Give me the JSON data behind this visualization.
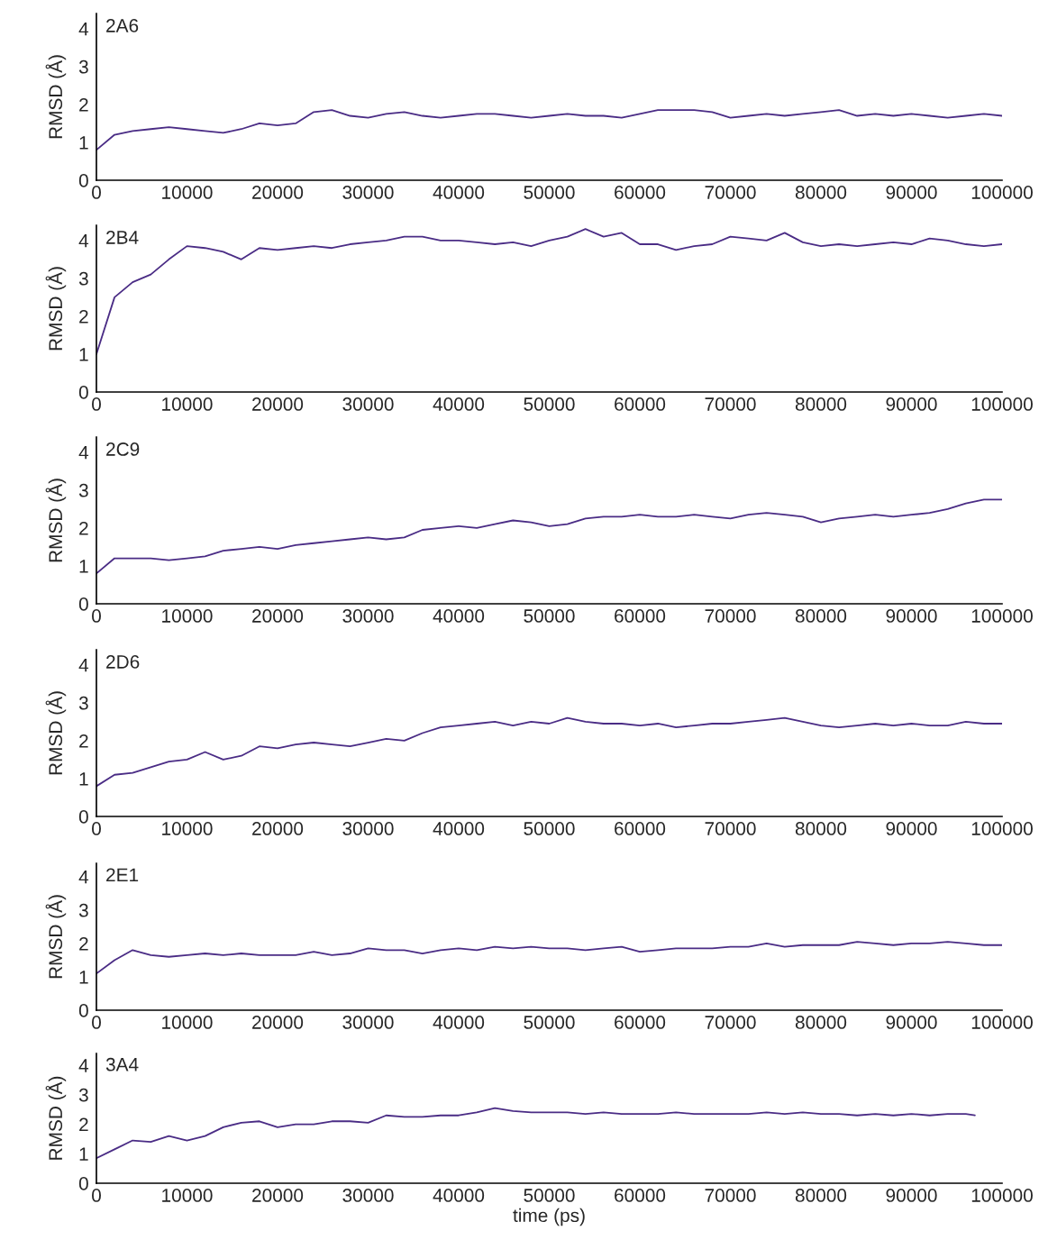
{
  "chart_data": [
    {
      "type": "line",
      "ylabel": "RMSD (Å)",
      "annotations": [
        "2A6"
      ],
      "xlim": [
        0,
        100000
      ],
      "ylim": [
        0,
        4.4
      ],
      "xticks": [
        0,
        10000,
        20000,
        30000,
        40000,
        50000,
        60000,
        70000,
        80000,
        90000,
        100000
      ],
      "yticks": [
        0,
        1,
        2,
        3,
        4
      ],
      "x": [
        0,
        2000,
        4000,
        6000,
        8000,
        10000,
        12000,
        14000,
        16000,
        18000,
        20000,
        22000,
        24000,
        26000,
        28000,
        30000,
        32000,
        34000,
        36000,
        38000,
        40000,
        42000,
        44000,
        46000,
        48000,
        50000,
        52000,
        54000,
        56000,
        58000,
        60000,
        62000,
        64000,
        66000,
        68000,
        70000,
        72000,
        74000,
        76000,
        78000,
        80000,
        82000,
        84000,
        86000,
        88000,
        90000,
        92000,
        94000,
        96000,
        98000,
        100000
      ],
      "series": [
        {
          "color": "#4a2c85",
          "values": [
            0.8,
            1.2,
            1.3,
            1.35,
            1.4,
            1.35,
            1.3,
            1.25,
            1.35,
            1.5,
            1.45,
            1.5,
            1.8,
            1.85,
            1.7,
            1.65,
            1.75,
            1.8,
            1.7,
            1.65,
            1.7,
            1.75,
            1.75,
            1.7,
            1.65,
            1.7,
            1.75,
            1.7,
            1.7,
            1.65,
            1.75,
            1.85,
            1.85,
            1.85,
            1.8,
            1.65,
            1.7,
            1.75,
            1.7,
            1.75,
            1.8,
            1.85,
            1.7,
            1.75,
            1.7,
            1.75,
            1.7,
            1.65,
            1.7,
            1.75,
            1.7
          ]
        }
      ]
    },
    {
      "type": "line",
      "ylabel": "RMSD (Å)",
      "annotations": [
        "2B4"
      ],
      "xlim": [
        0,
        100000
      ],
      "ylim": [
        0,
        4.4
      ],
      "xticks": [
        0,
        10000,
        20000,
        30000,
        40000,
        50000,
        60000,
        70000,
        80000,
        90000,
        100000
      ],
      "yticks": [
        0,
        1,
        2,
        3,
        4
      ],
      "x": [
        0,
        2000,
        4000,
        6000,
        8000,
        10000,
        12000,
        14000,
        16000,
        18000,
        20000,
        22000,
        24000,
        26000,
        28000,
        30000,
        32000,
        34000,
        36000,
        38000,
        40000,
        42000,
        44000,
        46000,
        48000,
        50000,
        52000,
        54000,
        56000,
        58000,
        60000,
        62000,
        64000,
        66000,
        68000,
        70000,
        72000,
        74000,
        76000,
        78000,
        80000,
        82000,
        84000,
        86000,
        88000,
        90000,
        92000,
        94000,
        96000,
        98000,
        100000
      ],
      "series": [
        {
          "color": "#4a2c85",
          "values": [
            1.0,
            2.5,
            2.9,
            3.1,
            3.5,
            3.85,
            3.8,
            3.7,
            3.5,
            3.8,
            3.75,
            3.8,
            3.85,
            3.8,
            3.9,
            3.95,
            4.0,
            4.1,
            4.1,
            4.0,
            4.0,
            3.95,
            3.9,
            3.95,
            3.85,
            4.0,
            4.1,
            4.3,
            4.1,
            4.2,
            3.9,
            3.9,
            3.75,
            3.85,
            3.9,
            4.1,
            4.05,
            4.0,
            4.2,
            3.95,
            3.85,
            3.9,
            3.85,
            3.9,
            3.95,
            3.9,
            4.05,
            4.0,
            3.9,
            3.85,
            3.9
          ]
        }
      ]
    },
    {
      "type": "line",
      "ylabel": "RMSD (Å)",
      "annotations": [
        "2C9"
      ],
      "xlim": [
        0,
        100000
      ],
      "ylim": [
        0,
        4.4
      ],
      "xticks": [
        0,
        10000,
        20000,
        30000,
        40000,
        50000,
        60000,
        70000,
        80000,
        90000,
        100000
      ],
      "yticks": [
        0,
        1,
        2,
        3,
        4
      ],
      "x": [
        0,
        2000,
        4000,
        6000,
        8000,
        10000,
        12000,
        14000,
        16000,
        18000,
        20000,
        22000,
        24000,
        26000,
        28000,
        30000,
        32000,
        34000,
        36000,
        38000,
        40000,
        42000,
        44000,
        46000,
        48000,
        50000,
        52000,
        54000,
        56000,
        58000,
        60000,
        62000,
        64000,
        66000,
        68000,
        70000,
        72000,
        74000,
        76000,
        78000,
        80000,
        82000,
        84000,
        86000,
        88000,
        90000,
        92000,
        94000,
        96000,
        98000,
        100000
      ],
      "series": [
        {
          "color": "#4a2c85",
          "values": [
            0.8,
            1.2,
            1.2,
            1.2,
            1.15,
            1.2,
            1.25,
            1.4,
            1.45,
            1.5,
            1.45,
            1.55,
            1.6,
            1.65,
            1.7,
            1.75,
            1.7,
            1.75,
            1.95,
            2.0,
            2.05,
            2.0,
            2.1,
            2.2,
            2.15,
            2.05,
            2.1,
            2.25,
            2.3,
            2.3,
            2.35,
            2.3,
            2.3,
            2.35,
            2.3,
            2.25,
            2.35,
            2.4,
            2.35,
            2.3,
            2.15,
            2.25,
            2.3,
            2.35,
            2.3,
            2.35,
            2.4,
            2.5,
            2.65,
            2.75,
            2.75
          ]
        }
      ]
    },
    {
      "type": "line",
      "ylabel": "RMSD (Å)",
      "annotations": [
        "2D6"
      ],
      "xlim": [
        0,
        100000
      ],
      "ylim": [
        0,
        4.4
      ],
      "xticks": [
        0,
        10000,
        20000,
        30000,
        40000,
        50000,
        60000,
        70000,
        80000,
        90000,
        100000
      ],
      "yticks": [
        0,
        1,
        2,
        3,
        4
      ],
      "x": [
        0,
        2000,
        4000,
        6000,
        8000,
        10000,
        12000,
        14000,
        16000,
        18000,
        20000,
        22000,
        24000,
        26000,
        28000,
        30000,
        32000,
        34000,
        36000,
        38000,
        40000,
        42000,
        44000,
        46000,
        48000,
        50000,
        52000,
        54000,
        56000,
        58000,
        60000,
        62000,
        64000,
        66000,
        68000,
        70000,
        72000,
        74000,
        76000,
        78000,
        80000,
        82000,
        84000,
        86000,
        88000,
        90000,
        92000,
        94000,
        96000,
        98000,
        100000
      ],
      "series": [
        {
          "color": "#4a2c85",
          "values": [
            0.8,
            1.1,
            1.15,
            1.3,
            1.45,
            1.5,
            1.7,
            1.5,
            1.6,
            1.85,
            1.8,
            1.9,
            1.95,
            1.9,
            1.85,
            1.95,
            2.05,
            2.0,
            2.2,
            2.35,
            2.4,
            2.45,
            2.5,
            2.4,
            2.5,
            2.45,
            2.6,
            2.5,
            2.45,
            2.45,
            2.4,
            2.45,
            2.35,
            2.4,
            2.45,
            2.45,
            2.5,
            2.55,
            2.6,
            2.5,
            2.4,
            2.35,
            2.4,
            2.45,
            2.4,
            2.45,
            2.4,
            2.4,
            2.5,
            2.45,
            2.45
          ]
        }
      ]
    },
    {
      "type": "line",
      "ylabel": "RMSD (Å)",
      "annotations": [
        "2E1"
      ],
      "xlim": [
        0,
        100000
      ],
      "ylim": [
        0,
        4.4
      ],
      "xticks": [
        0,
        10000,
        20000,
        30000,
        40000,
        50000,
        60000,
        70000,
        80000,
        90000,
        100000
      ],
      "yticks": [
        0,
        1,
        2,
        3,
        4
      ],
      "x": [
        0,
        2000,
        4000,
        6000,
        8000,
        10000,
        12000,
        14000,
        16000,
        18000,
        20000,
        22000,
        24000,
        26000,
        28000,
        30000,
        32000,
        34000,
        36000,
        38000,
        40000,
        42000,
        44000,
        46000,
        48000,
        50000,
        52000,
        54000,
        56000,
        58000,
        60000,
        62000,
        64000,
        66000,
        68000,
        70000,
        72000,
        74000,
        76000,
        78000,
        80000,
        82000,
        84000,
        86000,
        88000,
        90000,
        92000,
        94000,
        96000,
        98000,
        100000
      ],
      "series": [
        {
          "color": "#4a2c85",
          "values": [
            1.1,
            1.5,
            1.8,
            1.65,
            1.6,
            1.65,
            1.7,
            1.65,
            1.7,
            1.65,
            1.65,
            1.65,
            1.75,
            1.65,
            1.7,
            1.85,
            1.8,
            1.8,
            1.7,
            1.8,
            1.85,
            1.8,
            1.9,
            1.85,
            1.9,
            1.85,
            1.85,
            1.8,
            1.85,
            1.9,
            1.75,
            1.8,
            1.85,
            1.85,
            1.85,
            1.9,
            1.9,
            2.0,
            1.9,
            1.95,
            1.95,
            1.95,
            2.05,
            2.0,
            1.95,
            2.0,
            2.0,
            2.05,
            2.0,
            1.95,
            1.95
          ]
        }
      ]
    },
    {
      "type": "line",
      "ylabel": "RMSD (Å)",
      "xlabel": "time (ps)",
      "annotations": [
        "3A4"
      ],
      "xlim": [
        0,
        100000
      ],
      "ylim": [
        0,
        4.4
      ],
      "xticks": [
        0,
        10000,
        20000,
        30000,
        40000,
        50000,
        60000,
        70000,
        80000,
        90000,
        100000
      ],
      "yticks": [
        0,
        1,
        2,
        3,
        4
      ],
      "x": [
        0,
        2000,
        4000,
        6000,
        8000,
        10000,
        12000,
        14000,
        16000,
        18000,
        20000,
        22000,
        24000,
        26000,
        28000,
        30000,
        32000,
        34000,
        36000,
        38000,
        40000,
        42000,
        44000,
        46000,
        48000,
        50000,
        52000,
        54000,
        56000,
        58000,
        60000,
        62000,
        64000,
        66000,
        68000,
        70000,
        72000,
        74000,
        76000,
        78000,
        80000,
        82000,
        84000,
        86000,
        88000,
        90000,
        92000,
        94000,
        96000,
        97000
      ],
      "series": [
        {
          "color": "#4a2c85",
          "values": [
            0.85,
            1.15,
            1.45,
            1.4,
            1.6,
            1.45,
            1.6,
            1.9,
            2.05,
            2.1,
            1.9,
            2.0,
            2.0,
            2.1,
            2.1,
            2.05,
            2.3,
            2.25,
            2.25,
            2.3,
            2.3,
            2.4,
            2.55,
            2.45,
            2.4,
            2.4,
            2.4,
            2.35,
            2.4,
            2.35,
            2.35,
            2.35,
            2.4,
            2.35,
            2.35,
            2.35,
            2.35,
            2.4,
            2.35,
            2.4,
            2.35,
            2.35,
            2.3,
            2.35,
            2.3,
            2.35,
            2.3,
            2.35,
            2.35,
            2.3
          ]
        }
      ]
    }
  ]
}
